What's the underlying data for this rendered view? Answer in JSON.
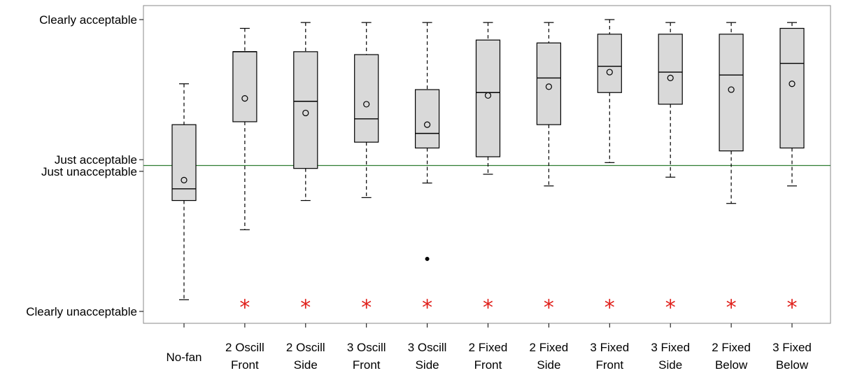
{
  "chart_data": {
    "type": "box",
    "y_scale": {
      "min": 0,
      "max": 1
    },
    "y_ticks": [
      {
        "value": 1.0,
        "label": "Clearly acceptable"
      },
      {
        "value": 0.52,
        "label": "Just acceptable"
      },
      {
        "value": 0.48,
        "label": "Just unacceptable"
      },
      {
        "value": 0.0,
        "label": "Clearly unacceptable"
      }
    ],
    "reference_line": {
      "value": 0.5,
      "color": "#2e7d32"
    },
    "significance_marker": {
      "symbol": "*",
      "color": "#e0201b",
      "value": 0.03
    },
    "colors": {
      "box_fill": "#d9d9d9",
      "stroke": "#000000"
    },
    "categories": [
      {
        "line1": "No-fan",
        "line2": "",
        "whisker_low": 0.04,
        "q1": 0.38,
        "median": 0.42,
        "q3": 0.64,
        "whisker_high": 0.78,
        "mean": 0.45,
        "outliers": [],
        "significant": false
      },
      {
        "line1": "2 Oscill",
        "line2": "Front",
        "whisker_low": 0.28,
        "q1": 0.65,
        "median": 0.89,
        "q3": 0.89,
        "whisker_high": 0.97,
        "mean": 0.73,
        "outliers": [],
        "significant": true
      },
      {
        "line1": "2 Oscill",
        "line2": "Side",
        "whisker_low": 0.38,
        "q1": 0.49,
        "median": 0.72,
        "q3": 0.89,
        "whisker_high": 0.99,
        "mean": 0.68,
        "outliers": [],
        "significant": true
      },
      {
        "line1": "3 Oscill",
        "line2": "Front",
        "whisker_low": 0.39,
        "q1": 0.58,
        "median": 0.66,
        "q3": 0.88,
        "whisker_high": 0.99,
        "mean": 0.71,
        "outliers": [],
        "significant": true
      },
      {
        "line1": "3 Oscill",
        "line2": "Side",
        "whisker_low": 0.44,
        "q1": 0.56,
        "median": 0.61,
        "q3": 0.76,
        "whisker_high": 0.99,
        "mean": 0.64,
        "outliers": [
          0.18
        ],
        "significant": true
      },
      {
        "line1": "2 Fixed",
        "line2": "Front",
        "whisker_low": 0.47,
        "q1": 0.53,
        "median": 0.75,
        "q3": 0.93,
        "whisker_high": 0.99,
        "mean": 0.74,
        "outliers": [],
        "significant": true
      },
      {
        "line1": "2 Fixed",
        "line2": "Side",
        "whisker_low": 0.43,
        "q1": 0.64,
        "median": 0.8,
        "q3": 0.92,
        "whisker_high": 0.99,
        "mean": 0.77,
        "outliers": [],
        "significant": true
      },
      {
        "line1": "3 Fixed",
        "line2": "Front",
        "whisker_low": 0.51,
        "q1": 0.75,
        "median": 0.84,
        "q3": 0.95,
        "whisker_high": 1.0,
        "mean": 0.82,
        "outliers": [],
        "significant": true
      },
      {
        "line1": "3 Fixed",
        "line2": "Side",
        "whisker_low": 0.46,
        "q1": 0.71,
        "median": 0.82,
        "q3": 0.95,
        "whisker_high": 0.99,
        "mean": 0.8,
        "outliers": [],
        "significant": true
      },
      {
        "line1": "2 Fixed",
        "line2": "Below",
        "whisker_low": 0.37,
        "q1": 0.55,
        "median": 0.81,
        "q3": 0.95,
        "whisker_high": 0.99,
        "mean": 0.76,
        "outliers": [],
        "significant": true
      },
      {
        "line1": "3 Fixed",
        "line2": "Below",
        "whisker_low": 0.43,
        "q1": 0.56,
        "median": 0.85,
        "q3": 0.97,
        "whisker_high": 0.99,
        "mean": 0.78,
        "outliers": [],
        "significant": true
      }
    ]
  }
}
